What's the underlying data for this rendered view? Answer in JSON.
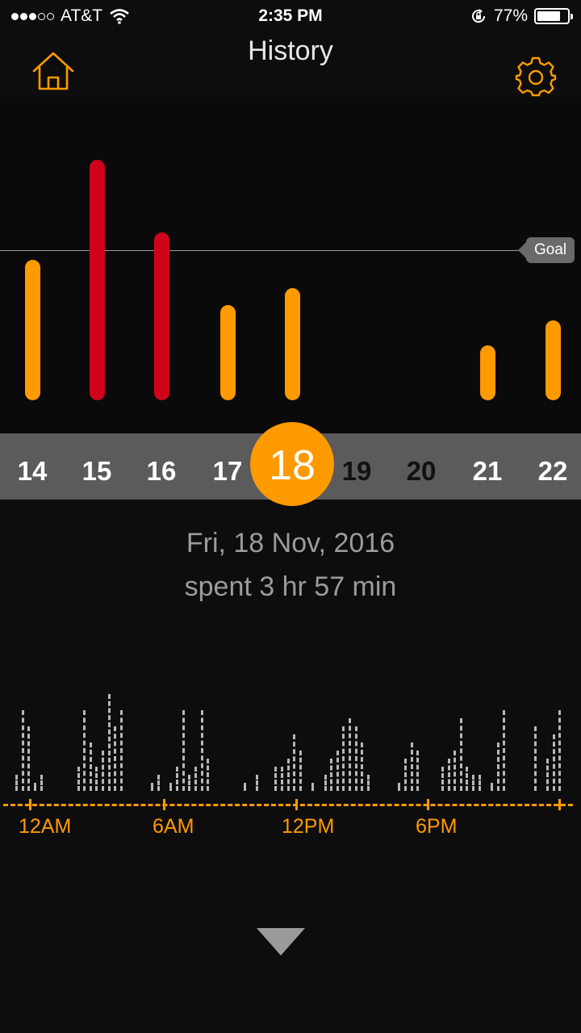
{
  "status_bar": {
    "carrier": "AT&T",
    "time": "2:35 PM",
    "battery": "77%",
    "battery_level": 0.77
  },
  "header": {
    "title": "History",
    "home_icon": "home-icon",
    "settings_icon": "gear-icon"
  },
  "chart_data": {
    "type": "bar",
    "categories": [
      "14",
      "15",
      "16",
      "17",
      "18",
      "19",
      "20",
      "21",
      "22"
    ],
    "values": [
      0.56,
      0.96,
      0.67,
      0.38,
      0.45,
      0,
      0,
      0.22,
      0.32
    ],
    "over_goal": [
      false,
      true,
      true,
      false,
      false,
      false,
      false,
      false,
      false
    ],
    "goal": 0.6,
    "goal_label": "Goal",
    "colors": {
      "under": "#ff9a00",
      "over": "#d0021b"
    }
  },
  "days": {
    "items": [
      {
        "label": "14",
        "state": "past"
      },
      {
        "label": "15",
        "state": "past"
      },
      {
        "label": "16",
        "state": "past"
      },
      {
        "label": "17",
        "state": "past"
      },
      {
        "label": "18",
        "state": "selected"
      },
      {
        "label": "19",
        "state": "future"
      },
      {
        "label": "20",
        "state": "future"
      },
      {
        "label": "21",
        "state": "past"
      },
      {
        "label": "22",
        "state": "past"
      }
    ]
  },
  "summary": {
    "date": "Fri, 18 Nov, 2016",
    "spent": "spent 3 hr 57 min"
  },
  "timeline": {
    "labels": [
      "12AM",
      "6AM",
      "12PM",
      "6PM"
    ],
    "activity": [
      2,
      10,
      8,
      1,
      2,
      0,
      0,
      0,
      0,
      0,
      3,
      10,
      6,
      3,
      5,
      12,
      8,
      10,
      0,
      0,
      0,
      0,
      1,
      2,
      0,
      1,
      3,
      10,
      2,
      3,
      10,
      4,
      0,
      0,
      0,
      0,
      0,
      1,
      0,
      2,
      0,
      0,
      3,
      3,
      4,
      7,
      5,
      0,
      1,
      0,
      2,
      4,
      5,
      8,
      9,
      8,
      6,
      2,
      0,
      0,
      0,
      0,
      1,
      4,
      6,
      5,
      0,
      0,
      0,
      3,
      4,
      5,
      9,
      3,
      2,
      2,
      0,
      1,
      6,
      10,
      0,
      0,
      0,
      0,
      8,
      0,
      4,
      7,
      10
    ],
    "accent": "#ff9a00"
  },
  "footer": {
    "arrow_icon": "chevron-down-icon"
  }
}
